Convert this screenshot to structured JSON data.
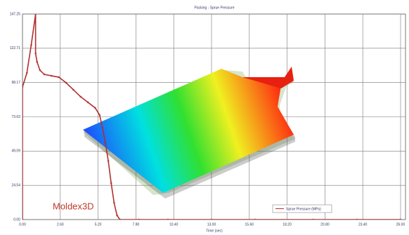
{
  "chart_data": {
    "type": "line",
    "title": "Packing - Sprue Pressure",
    "x_label": "Time (sec)",
    "logo": "Moldex3D",
    "x": [
      0,
      0,
      0.3,
      0.6,
      0.9,
      0.9,
      1.0,
      1.2,
      1.5,
      2.0,
      2.5,
      3.0,
      3.5,
      4.0,
      4.5,
      5.0,
      5.3,
      5.5,
      5.7,
      5.9,
      6.1,
      6.3,
      6.5,
      6.7,
      8,
      10,
      13,
      16,
      20,
      23,
      26
    ],
    "series": [
      {
        "name": "Sprue Pressure (MPa)",
        "color": "#b03030",
        "values": [
          0,
          95,
          105,
          125,
          147.25,
          119,
          113,
          107,
          104,
          103,
          102,
          98,
          93,
          88,
          84,
          80,
          75,
          66,
          55,
          42,
          26,
          12,
          3,
          0,
          0,
          0,
          0,
          0,
          0,
          0,
          0
        ]
      }
    ],
    "xlim": [
      0,
      26
    ],
    "xticks": [
      {
        "value": 0,
        "label": "0.00"
      },
      {
        "value": 2.6,
        "label": "2.60"
      },
      {
        "value": 5.2,
        "label": "5.20"
      },
      {
        "value": 7.8,
        "label": "7.80"
      },
      {
        "value": 10.4,
        "label": "10.40"
      },
      {
        "value": 13,
        "label": "13.00"
      },
      {
        "value": 15.6,
        "label": "15.60"
      },
      {
        "value": 18.2,
        "label": "18.20"
      },
      {
        "value": 20.8,
        "label": "20.80"
      },
      {
        "value": 23.4,
        "label": "23.40"
      },
      {
        "value": 26,
        "label": "26.00"
      }
    ],
    "ylim": [
      0,
      147.25
    ],
    "yticks": [
      {
        "value": 0,
        "label": "0.00"
      },
      {
        "value": 24.54,
        "label": "24.54"
      },
      {
        "value": 49.09,
        "label": "49.09"
      },
      {
        "value": 73.63,
        "label": "73.63"
      },
      {
        "value": 98.17,
        "label": "98.17"
      },
      {
        "value": 122.71,
        "label": "122.71"
      },
      {
        "value": 147.25,
        "label": "147.25"
      }
    ],
    "grid": true
  }
}
